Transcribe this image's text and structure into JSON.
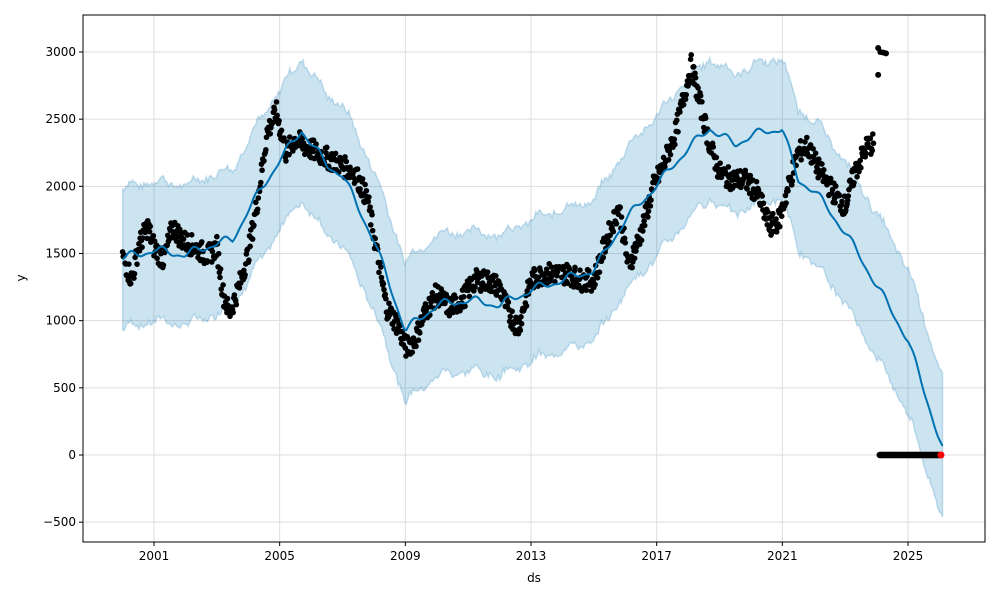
{
  "chart_data": {
    "type": "line",
    "title": "",
    "xlabel": "ds",
    "ylabel": "y",
    "xlim": [
      1997.8,
      2027.0
    ],
    "ylim": [
      -650,
      3300
    ],
    "grid": true,
    "x_ticks": [
      2001,
      2005,
      2009,
      2013,
      2017,
      2021,
      2025
    ],
    "x_tick_labels": [
      "2001",
      "2005",
      "2009",
      "2013",
      "2017",
      "2021",
      "2025"
    ],
    "y_ticks": [
      -500,
      0,
      500,
      1000,
      1500,
      2000,
      2500,
      3000
    ],
    "y_tick_labels": [
      "−500",
      "0",
      "500",
      "1000",
      "1500",
      "2000",
      "2500",
      "3000"
    ],
    "colors": {
      "forecast": "#0072B2",
      "band": "#0072B2",
      "observed": "#000000",
      "highlight": "#ff0000"
    },
    "forecast": {
      "x": [
        2000.0,
        2001.0,
        2002.0,
        2003.0,
        2003.5,
        2004.0,
        2005.0,
        2005.7,
        2006.5,
        2007.0,
        2008.0,
        2009.0,
        2010.0,
        2011.0,
        2012.0,
        2013.0,
        2014.0,
        2015.0,
        2016.0,
        2017.0,
        2018.0,
        2018.7,
        2019.5,
        2020.0,
        2021.0,
        2021.5,
        2022.0,
        2023.0,
        2024.0,
        2025.0,
        2025.5,
        2026.1
      ],
      "yhat": [
        1466,
        1525,
        1490,
        1577,
        1600,
        1823,
        2195,
        2418,
        2158,
        2083,
        1600,
        930,
        1116,
        1153,
        1116,
        1228,
        1302,
        1376,
        1749,
        2009,
        2284,
        2433,
        2307,
        2381,
        2433,
        2046,
        1972,
        1659,
        1265,
        856,
        484,
        50
      ],
      "yhat_upper": [
        1990,
        2040,
        2010,
        2100,
        2120,
        2350,
        2720,
        2950,
        2680,
        2610,
        2120,
        1440,
        1640,
        1670,
        1640,
        1750,
        1830,
        1900,
        2270,
        2530,
        2800,
        2950,
        2830,
        2900,
        2960,
        2570,
        2500,
        2190,
        1800,
        1390,
        1020,
        570
      ],
      "yhat_lower": [
        940,
        1000,
        970,
        1050,
        1080,
        1300,
        1680,
        1900,
        1640,
        1560,
        1080,
        400,
        590,
        630,
        590,
        700,
        780,
        850,
        1220,
        1480,
        1760,
        1910,
        1790,
        1860,
        1910,
        1520,
        1440,
        1130,
        730,
        320,
        -50,
        -470
      ]
    },
    "observed": [
      [
        2000.0,
        1480
      ],
      [
        2000.3,
        1300
      ],
      [
        2000.5,
        1550
      ],
      [
        2000.8,
        1700
      ],
      [
        2001.0,
        1550
      ],
      [
        2001.3,
        1450
      ],
      [
        2001.6,
        1700
      ],
      [
        2001.9,
        1600
      ],
      [
        2002.3,
        1550
      ],
      [
        2002.7,
        1480
      ],
      [
        2003.0,
        1550
      ],
      [
        2003.2,
        1200
      ],
      [
        2003.4,
        1050
      ],
      [
        2003.7,
        1250
      ],
      [
        2004.0,
        1500
      ],
      [
        2004.3,
        1900
      ],
      [
        2004.6,
        2400
      ],
      [
        2004.9,
        2550
      ],
      [
        2005.2,
        2250
      ],
      [
        2005.5,
        2350
      ],
      [
        2005.8,
        2300
      ],
      [
        2006.2,
        2250
      ],
      [
        2006.6,
        2200
      ],
      [
        2007.0,
        2150
      ],
      [
        2007.4,
        2100
      ],
      [
        2007.8,
        1900
      ],
      [
        2008.1,
        1500
      ],
      [
        2008.4,
        1100
      ],
      [
        2008.8,
        950
      ],
      [
        2009.0,
        800
      ],
      [
        2009.3,
        850
      ],
      [
        2009.6,
        1050
      ],
      [
        2010.0,
        1200
      ],
      [
        2010.4,
        1100
      ],
      [
        2010.8,
        1150
      ],
      [
        2011.2,
        1300
      ],
      [
        2011.6,
        1300
      ],
      [
        2012.0,
        1250
      ],
      [
        2012.3,
        1050
      ],
      [
        2012.6,
        950
      ],
      [
        2013.0,
        1300
      ],
      [
        2013.4,
        1350
      ],
      [
        2013.8,
        1350
      ],
      [
        2014.2,
        1350
      ],
      [
        2014.6,
        1300
      ],
      [
        2015.0,
        1300
      ],
      [
        2015.4,
        1600
      ],
      [
        2015.8,
        1850
      ],
      [
        2016.1,
        1400
      ],
      [
        2016.5,
        1650
      ],
      [
        2016.9,
        2000
      ],
      [
        2017.2,
        2150
      ],
      [
        2017.6,
        2400
      ],
      [
        2017.9,
        2700
      ],
      [
        2018.1,
        2900
      ],
      [
        2018.4,
        2600
      ],
      [
        2018.7,
        2300
      ],
      [
        2019.0,
        2100
      ],
      [
        2019.4,
        2050
      ],
      [
        2019.8,
        2050
      ],
      [
        2020.2,
        1950
      ],
      [
        2020.6,
        1700
      ],
      [
        2020.9,
        1750
      ],
      [
        2021.2,
        2000
      ],
      [
        2021.5,
        2250
      ],
      [
        2021.8,
        2300
      ],
      [
        2022.1,
        2150
      ],
      [
        2022.5,
        2000
      ],
      [
        2022.8,
        1900
      ],
      [
        2023.0,
        1850
      ],
      [
        2023.3,
        2100
      ],
      [
        2023.7,
        2300
      ],
      [
        2023.9,
        2320
      ]
    ],
    "outliers": [
      [
        2024.05,
        3030
      ],
      [
        2024.12,
        3000
      ],
      [
        2024.22,
        2995
      ],
      [
        2024.3,
        2990
      ],
      [
        2024.05,
        2830
      ]
    ],
    "zero_points": {
      "x_start": 2024.1,
      "x_end": 2026.0,
      "value": 0
    },
    "highlight_point": [
      2026.05,
      0
    ]
  }
}
